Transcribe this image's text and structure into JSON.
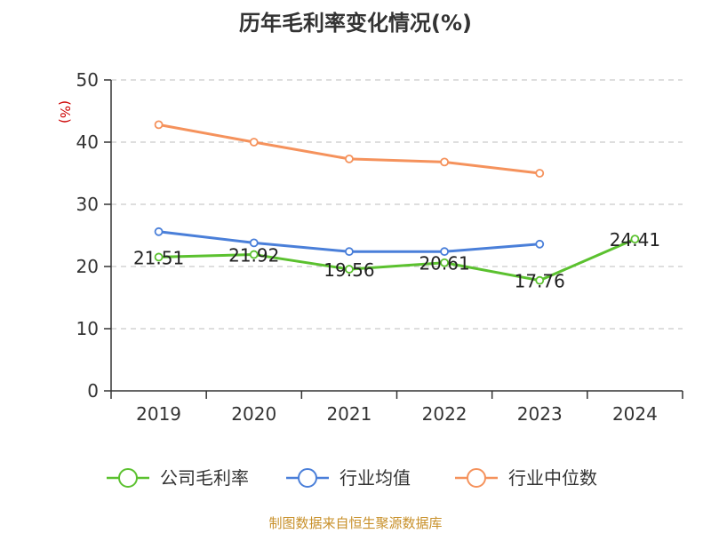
{
  "chart_data": {
    "type": "line",
    "title": "历年毛利率变化情况(%)",
    "ylabel": "(%)",
    "xlabel": "",
    "categories": [
      "2019",
      "2020",
      "2021",
      "2022",
      "2023",
      "2024"
    ],
    "ylim": [
      0,
      50
    ],
    "yticks": [
      0,
      10,
      20,
      30,
      40,
      50
    ],
    "grid": true,
    "legend_position": "bottom",
    "series": [
      {
        "name": "公司毛利率",
        "color": "#5bc12f",
        "values": [
          21.51,
          21.92,
          19.56,
          20.61,
          17.76,
          24.41
        ],
        "labels": [
          "21.51",
          "21.92",
          "19.56",
          "20.61",
          "17.76",
          "24.41"
        ]
      },
      {
        "name": "行业均值",
        "color": "#4a7fd9",
        "values": [
          25.6,
          23.8,
          22.4,
          22.4,
          23.6,
          null
        ]
      },
      {
        "name": "行业中位数",
        "color": "#f5925c",
        "values": [
          42.8,
          40.0,
          37.3,
          36.8,
          35.0,
          null
        ]
      }
    ]
  },
  "source": "制图数据来自恒生聚源数据库"
}
